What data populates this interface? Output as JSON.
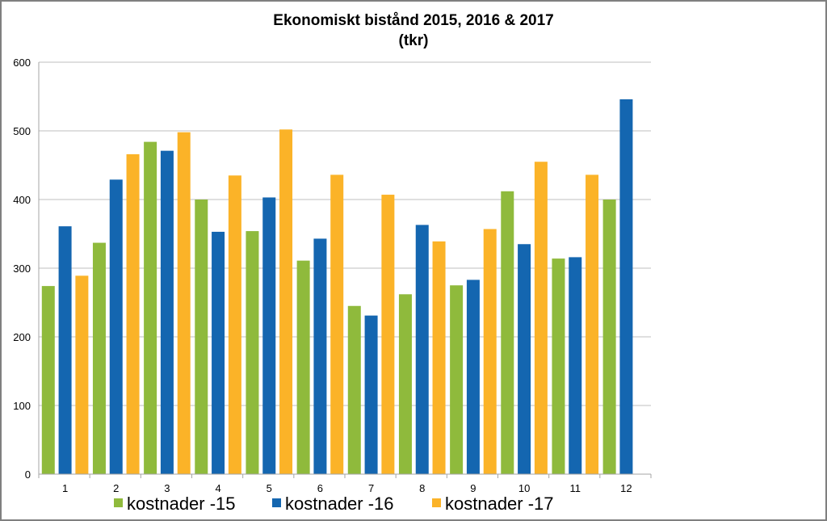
{
  "chart_data": {
    "type": "bar",
    "title": "Ekonomiskt bistånd 2015, 2016 & 2017",
    "subtitle": "(tkr)",
    "xlabel": "",
    "ylabel": "",
    "ylim": [
      0,
      600
    ],
    "yticks": [
      0,
      100,
      200,
      300,
      400,
      500,
      600
    ],
    "categories": [
      "1",
      "2",
      "3",
      "4",
      "5",
      "6",
      "7",
      "8",
      "9",
      "10",
      "11",
      "12"
    ],
    "grid": true,
    "legend_position": "bottom",
    "series": [
      {
        "name": "kostnader -15",
        "color": "#8fba3c",
        "values": [
          274,
          337,
          484,
          400,
          354,
          311,
          245,
          262,
          275,
          412,
          314,
          400
        ]
      },
      {
        "name": "kostnader -16",
        "color": "#1466b0",
        "values": [
          361,
          429,
          471,
          353,
          403,
          343,
          231,
          363,
          283,
          335,
          316,
          546
        ]
      },
      {
        "name": "kostnader -17",
        "color": "#fbb328",
        "values": [
          289,
          466,
          498,
          435,
          502,
          436,
          407,
          339,
          357,
          455,
          436,
          null
        ]
      }
    ]
  }
}
